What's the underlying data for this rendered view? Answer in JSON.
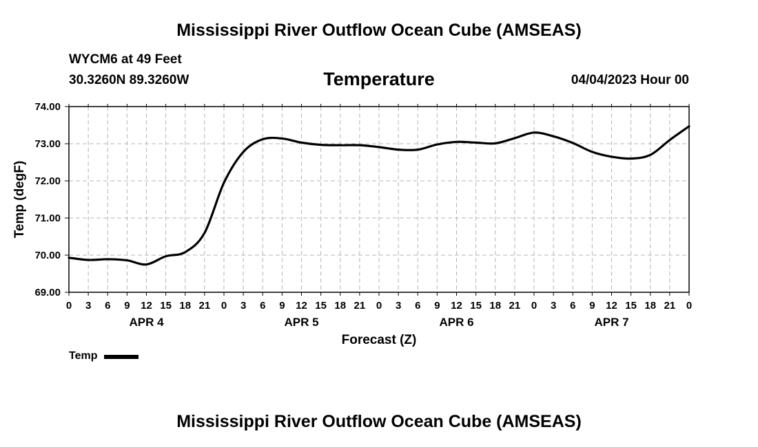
{
  "header": {
    "main_title": "Mississippi River Outflow Ocean Cube (AMSEAS)",
    "station": "WYCM6 at 49 Feet",
    "coordinates": "30.3260N  89.3260W",
    "chart_title": "Temperature",
    "datetime": "04/04/2023 Hour 00"
  },
  "footer": {
    "title": "Mississippi River Outflow Ocean Cube (AMSEAS)"
  },
  "legend": {
    "label": "Temp"
  },
  "chart_data": {
    "type": "line",
    "title": "Temperature",
    "xlabel": "Forecast (Z)",
    "ylabel": "Temp (degF)",
    "ylim": [
      69,
      74
    ],
    "xlim": [
      0,
      96
    ],
    "y_ticks": [
      "69.00",
      "70.00",
      "71.00",
      "72.00",
      "73.00",
      "74.00"
    ],
    "x_tick_labels": [
      "0",
      "3",
      "6",
      "9",
      "12",
      "15",
      "18",
      "21",
      "0",
      "3",
      "6",
      "9",
      "12",
      "15",
      "18",
      "21",
      "0",
      "3",
      "6",
      "9",
      "12",
      "15",
      "18",
      "21",
      "0",
      "3",
      "6",
      "9",
      "12",
      "15",
      "18",
      "21",
      "0"
    ],
    "date_labels": [
      {
        "label": "APR 4",
        "hour": 12
      },
      {
        "label": "APR 5",
        "hour": 36
      },
      {
        "label": "APR 6",
        "hour": 60
      },
      {
        "label": "APR 7",
        "hour": 84
      }
    ],
    "grid": true,
    "line_color": "#000000",
    "series": [
      {
        "name": "Temp",
        "x": [
          0,
          3,
          6,
          9,
          12,
          15,
          18,
          21,
          24,
          27,
          30,
          33,
          36,
          39,
          42,
          45,
          48,
          51,
          54,
          57,
          60,
          63,
          66,
          69,
          72,
          75,
          78,
          81,
          84,
          87,
          90,
          93,
          96
        ],
        "values": [
          69.93,
          69.87,
          69.89,
          69.86,
          69.75,
          69.97,
          70.08,
          70.6,
          71.95,
          72.78,
          73.12,
          73.14,
          73.03,
          72.97,
          72.96,
          72.96,
          72.91,
          72.84,
          72.84,
          72.98,
          73.05,
          73.03,
          73.01,
          73.15,
          73.3,
          73.2,
          73.02,
          72.78,
          72.65,
          72.6,
          72.7,
          73.1,
          73.47
        ]
      }
    ]
  }
}
